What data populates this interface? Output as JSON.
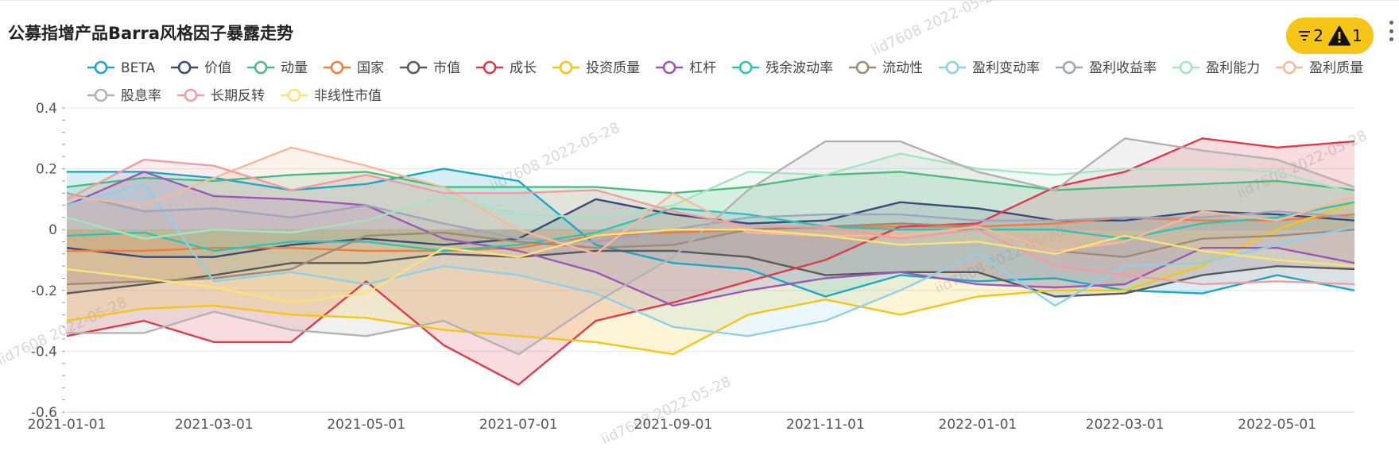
{
  "header": {
    "title": "公募指增产品Barra风格因子暴露走势"
  },
  "toolbar": {
    "filter_count": "2",
    "warning_count": "1",
    "filter_icon": "filter-icon",
    "warning_icon": "warning-icon",
    "more_icon": "more-vertical-icon"
  },
  "watermark": {
    "text": "iid7608  2022-05-28"
  },
  "chart_data": {
    "type": "area",
    "title": "公募指增产品Barra风格因子暴露走势",
    "xlabel": "",
    "ylabel": "",
    "ylim": [
      -0.6,
      0.4
    ],
    "yticks": [
      "0.4",
      "0.2",
      "0",
      "-0.2",
      "-0.4",
      "-0.6"
    ],
    "ytick_values": [
      0.4,
      0.2,
      0,
      -0.2,
      -0.4,
      -0.6
    ],
    "x": [
      "2021-01-01",
      "2021-02-01",
      "2021-03-01",
      "2021-04-01",
      "2021-05-01",
      "2021-06-01",
      "2021-07-01",
      "2021-08-01",
      "2021-09-01",
      "2021-10-01",
      "2021-11-01",
      "2021-12-01",
      "2022-01-01",
      "2022-02-01",
      "2022-03-01",
      "2022-04-01",
      "2022-05-01",
      "2022-06-01"
    ],
    "xticks": [
      "2021-01-01",
      "2021-03-01",
      "2021-05-01",
      "2021-07-01",
      "2021-09-01",
      "2021-11-01",
      "2022-01-01",
      "2022-03-01",
      "2022-05-01"
    ],
    "grid": true,
    "legend_position": "top",
    "series": [
      {
        "name": "BETA",
        "color": "#1ea7c5",
        "values": [
          0.19,
          0.19,
          0.17,
          0.13,
          0.15,
          0.2,
          0.16,
          -0.05,
          -0.11,
          -0.13,
          -0.22,
          -0.15,
          -0.17,
          -0.16,
          -0.2,
          -0.21,
          -0.15,
          -0.2
        ]
      },
      {
        "name": "价值",
        "color": "#3b4a78",
        "values": [
          -0.06,
          -0.09,
          -0.09,
          -0.05,
          -0.03,
          -0.05,
          -0.03,
          0.1,
          0.05,
          0.02,
          0.03,
          0.09,
          0.07,
          0.03,
          0.03,
          0.06,
          0.05,
          0.03
        ]
      },
      {
        "name": "动量",
        "color": "#4cbb7f",
        "values": [
          0.14,
          0.17,
          0.16,
          0.18,
          0.19,
          0.14,
          0.14,
          0.14,
          0.12,
          0.14,
          0.18,
          0.19,
          0.16,
          0.13,
          0.14,
          0.15,
          0.16,
          0.13
        ]
      },
      {
        "name": "国家",
        "color": "#f07c3e",
        "values": [
          -0.07,
          -0.07,
          -0.06,
          -0.06,
          -0.07,
          -0.07,
          -0.06,
          -0.02,
          -0.01,
          0.0,
          0.01,
          0.01,
          0.01,
          0.02,
          0.04,
          0.03,
          0.03,
          0.05
        ]
      },
      {
        "name": "市值",
        "color": "#5a5a5a",
        "values": [
          -0.21,
          -0.18,
          -0.15,
          -0.11,
          -0.11,
          -0.08,
          -0.09,
          -0.07,
          -0.07,
          -0.09,
          -0.15,
          -0.14,
          -0.14,
          -0.22,
          -0.21,
          -0.15,
          -0.12,
          -0.13
        ]
      },
      {
        "name": "成长",
        "color": "#dc3c4b",
        "values": [
          -0.35,
          -0.3,
          -0.37,
          -0.37,
          -0.17,
          -0.38,
          -0.51,
          -0.3,
          -0.24,
          -0.17,
          -0.1,
          0.01,
          0.02,
          0.14,
          0.19,
          0.3,
          0.27,
          0.29
        ]
      },
      {
        "name": "投资质量",
        "color": "#f5c518",
        "values": [
          -0.3,
          -0.26,
          -0.25,
          -0.28,
          -0.29,
          -0.33,
          -0.35,
          -0.37,
          -0.41,
          -0.28,
          -0.23,
          -0.28,
          -0.22,
          -0.2,
          -0.2,
          -0.12,
          0.0,
          0.09
        ]
      },
      {
        "name": "杠杆",
        "color": "#9b59b6",
        "values": [
          0.08,
          0.19,
          0.11,
          0.1,
          0.08,
          -0.03,
          -0.07,
          -0.14,
          -0.25,
          -0.2,
          -0.16,
          -0.14,
          -0.18,
          -0.19,
          -0.18,
          -0.06,
          -0.06,
          -0.11
        ]
      },
      {
        "name": "残余波动率",
        "color": "#2fc3b5",
        "values": [
          -0.02,
          -0.01,
          -0.07,
          -0.04,
          -0.04,
          -0.07,
          -0.05,
          -0.01,
          0.07,
          0.05,
          0.01,
          0.0,
          0.0,
          0.0,
          -0.03,
          0.02,
          0.04,
          0.09
        ]
      },
      {
        "name": "流动性",
        "color": "#a08a78",
        "values": [
          -0.18,
          -0.17,
          -0.16,
          -0.13,
          -0.02,
          -0.01,
          -0.04,
          -0.06,
          -0.05,
          0.0,
          0.01,
          0.02,
          0.01,
          -0.07,
          -0.09,
          -0.03,
          -0.02,
          0.0
        ]
      },
      {
        "name": "盈利变动率",
        "color": "#8fd0e6",
        "values": [
          0.08,
          0.15,
          -0.17,
          -0.14,
          -0.18,
          -0.12,
          -0.15,
          -0.21,
          -0.32,
          -0.35,
          -0.3,
          -0.2,
          -0.08,
          -0.25,
          -0.12,
          -0.11,
          -0.05,
          0.01
        ]
      },
      {
        "name": "盈利收益率",
        "color": "#a0a4bd",
        "values": [
          0.12,
          0.06,
          0.07,
          0.04,
          0.08,
          0.02,
          -0.03,
          -0.04,
          0.0,
          0.04,
          0.05,
          0.05,
          0.03,
          0.03,
          0.04,
          0.04,
          0.06,
          0.04
        ]
      },
      {
        "name": "盈利能力",
        "color": "#a6e3c0",
        "values": [
          0.04,
          -0.03,
          0.0,
          -0.01,
          0.03,
          0.11,
          0.05,
          0.04,
          0.08,
          0.19,
          0.18,
          0.25,
          0.2,
          0.18,
          0.2,
          0.2,
          0.19,
          0.12
        ]
      },
      {
        "name": "盈利质量",
        "color": "#f8b99a",
        "values": [
          0.11,
          0.08,
          0.17,
          0.27,
          0.21,
          0.14,
          0.0,
          -0.08,
          0.12,
          -0.01,
          -0.02,
          -0.02,
          0.01,
          -0.07,
          -0.04,
          0.06,
          0.03,
          0.11
        ]
      },
      {
        "name": "股息率",
        "color": "#b3b3b3",
        "values": [
          -0.34,
          -0.34,
          -0.27,
          -0.33,
          -0.35,
          -0.3,
          -0.41,
          -0.24,
          -0.09,
          0.13,
          0.29,
          0.29,
          0.19,
          0.13,
          0.3,
          0.26,
          0.23,
          0.14
        ]
      },
      {
        "name": "长期反转",
        "color": "#f29ca3",
        "values": [
          0.1,
          0.23,
          0.21,
          0.13,
          0.18,
          0.12,
          0.12,
          0.13,
          0.06,
          0.01,
          0.01,
          -0.03,
          0.0,
          -0.12,
          -0.15,
          -0.18,
          -0.17,
          -0.18
        ]
      },
      {
        "name": "非线性市值",
        "color": "#fbe27a",
        "values": [
          -0.13,
          -0.16,
          -0.19,
          -0.24,
          -0.21,
          -0.06,
          -0.09,
          -0.02,
          0.0,
          0.0,
          -0.02,
          -0.05,
          -0.04,
          -0.08,
          -0.02,
          -0.07,
          -0.1,
          -0.12
        ]
      }
    ]
  }
}
